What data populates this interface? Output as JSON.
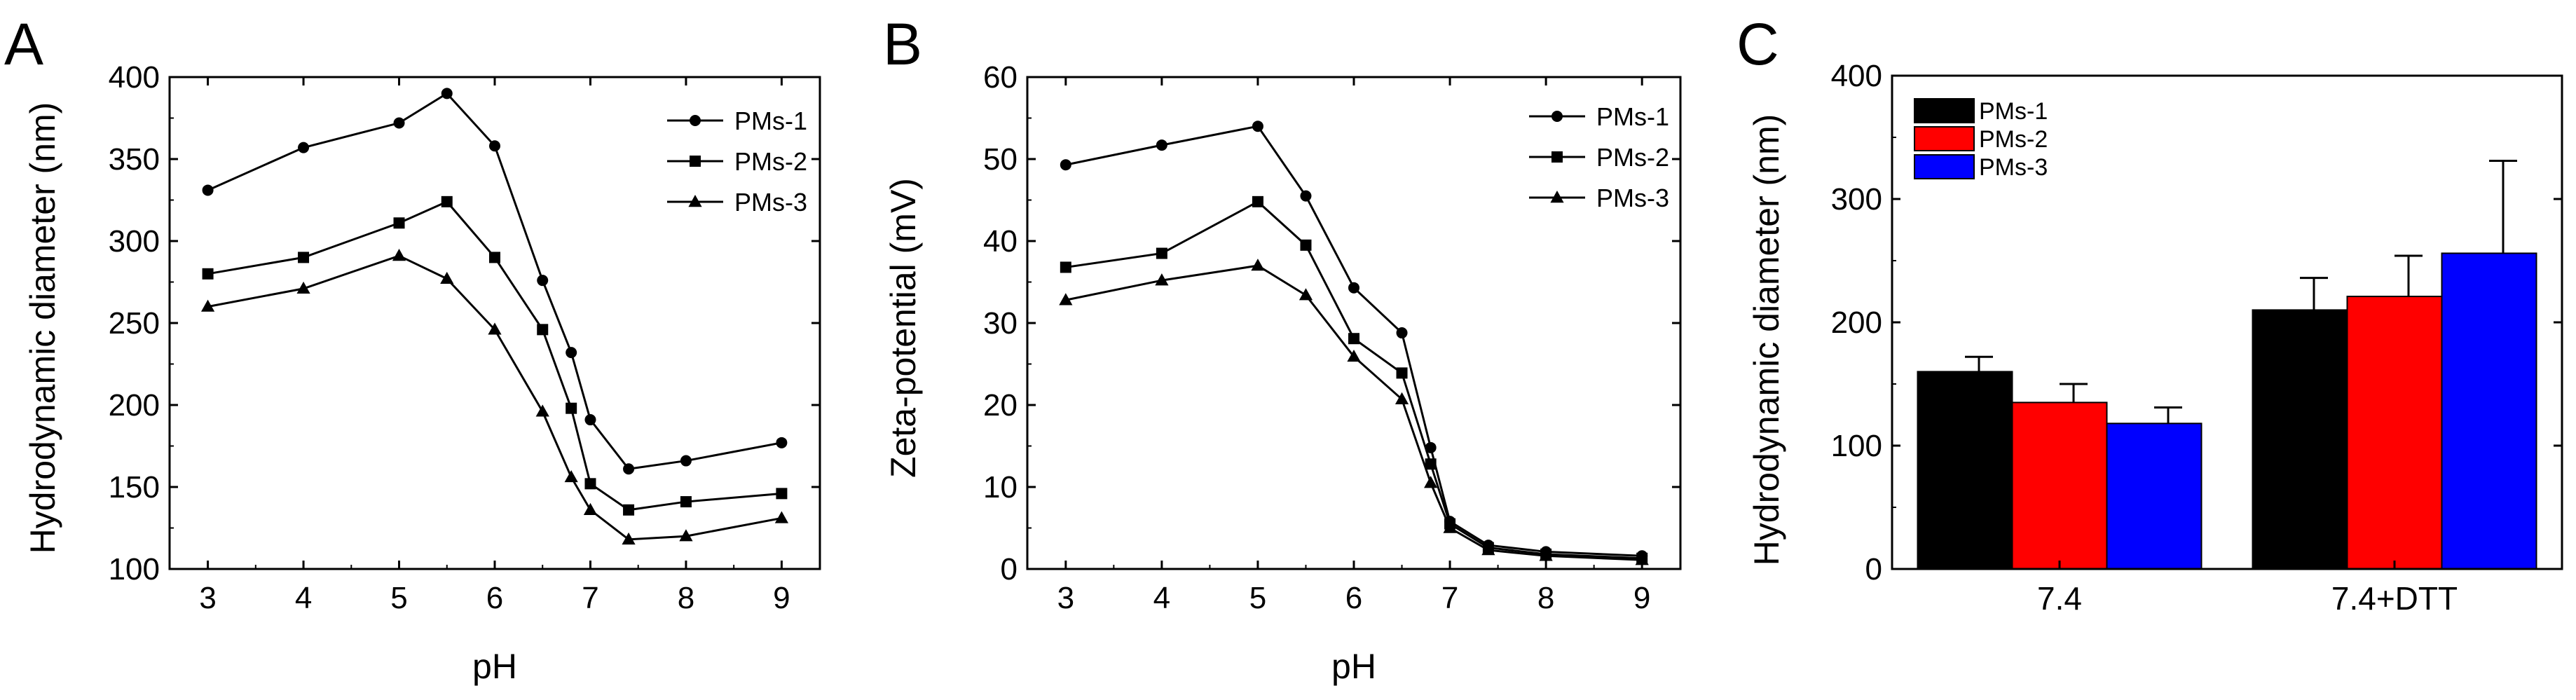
{
  "chart_data": [
    {
      "panel_label": "A",
      "type": "line",
      "xlabel": "pH",
      "ylabel": "Hydrodynamic diameter (nm)",
      "xlim": [
        2.6,
        9.4
      ],
      "ylim": [
        100,
        400
      ],
      "xticks": [
        3,
        4,
        5,
        6,
        7,
        8,
        9
      ],
      "yticks": [
        100,
        150,
        200,
        250,
        300,
        350,
        400
      ],
      "x": [
        3,
        4,
        5,
        5.5,
        6,
        6.5,
        6.8,
        7,
        7.4,
        8,
        9
      ],
      "legend_position": "top-right",
      "series": [
        {
          "name": "PMs-1",
          "marker": "circle",
          "values": [
            331,
            357,
            372,
            390,
            358,
            276,
            232,
            191,
            161,
            166,
            177
          ]
        },
        {
          "name": "PMs-2",
          "marker": "square",
          "values": [
            280,
            290,
            311,
            324,
            290,
            246,
            198,
            152,
            136,
            141,
            146
          ]
        },
        {
          "name": "PMs-3",
          "marker": "triangle",
          "values": [
            260,
            271,
            291,
            277,
            246,
            196,
            156,
            136,
            118,
            120,
            131
          ]
        }
      ]
    },
    {
      "panel_label": "B",
      "type": "line",
      "xlabel": "pH",
      "ylabel": "Zeta-potential (mV)",
      "xlim": [
        2.6,
        9.4
      ],
      "ylim": [
        0,
        60
      ],
      "xticks": [
        3,
        4,
        5,
        6,
        7,
        8,
        9
      ],
      "yticks": [
        0,
        10,
        20,
        30,
        40,
        50,
        60
      ],
      "x": [
        3,
        4,
        5,
        5.5,
        6,
        6.5,
        6.8,
        7,
        7.4,
        8,
        9
      ],
      "legend_position": "top-right",
      "series": [
        {
          "name": "PMs-1",
          "marker": "circle",
          "values": [
            49.3,
            51.7,
            54,
            45.5,
            34.3,
            28.8,
            14.8,
            5.8,
            2.9,
            2.1,
            1.6
          ]
        },
        {
          "name": "PMs-2",
          "marker": "square",
          "values": [
            36.8,
            38.5,
            44.8,
            39.5,
            28.1,
            23.9,
            12.8,
            5.5,
            2.6,
            1.8,
            1.3
          ]
        },
        {
          "name": "PMs-3",
          "marker": "triangle",
          "values": [
            32.8,
            35.2,
            37,
            33.4,
            25.9,
            20.7,
            10.5,
            5,
            2.3,
            1.6,
            1.1
          ]
        }
      ]
    },
    {
      "panel_label": "C",
      "type": "bar",
      "xlabel": "",
      "ylabel": "Hydrodynamic diameter (nm)",
      "ylim": [
        0,
        400
      ],
      "yticks": [
        0,
        100,
        200,
        300,
        400
      ],
      "categories": [
        "7.4",
        "7.4+DTT"
      ],
      "legend_position": "top-left",
      "series": [
        {
          "name": "PMs-1",
          "color": "#000000",
          "values": [
            160,
            210
          ],
          "errors": [
            12,
            26
          ]
        },
        {
          "name": "PMs-2",
          "color": "#ff0000",
          "values": [
            135,
            221
          ],
          "errors": [
            15,
            33
          ]
        },
        {
          "name": "PMs-3",
          "color": "#0000ff",
          "values": [
            118,
            256
          ],
          "errors": [
            13,
            75
          ]
        }
      ]
    }
  ]
}
